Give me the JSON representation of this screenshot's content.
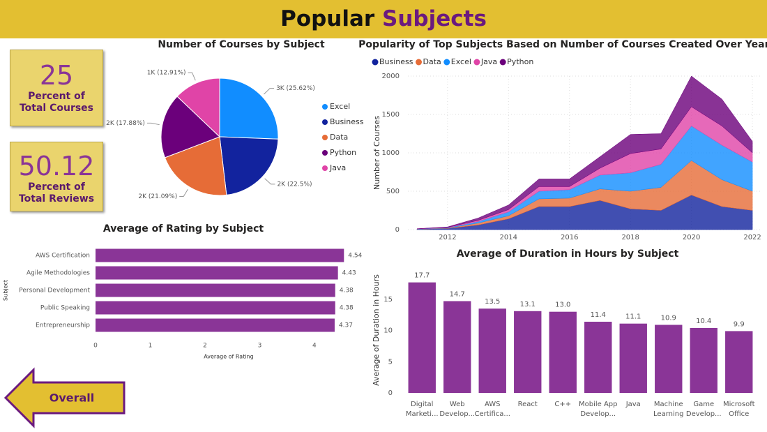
{
  "header": {
    "title": [
      "Popular",
      "Subjects"
    ]
  },
  "cards": [
    {
      "value": 25,
      "label": "Percent of Total Courses"
    },
    {
      "value": 50.12,
      "label": "Percent of Total Reviews"
    }
  ],
  "button": {
    "label": "Overall"
  },
  "chart_data": [
    {
      "type": "pie",
      "title": "Number of Courses by Subject",
      "categories": [
        "Excel",
        "Business",
        "Data",
        "Python",
        "Java"
      ],
      "values": [
        25.62,
        22.5,
        21.09,
        17.88,
        12.91
      ],
      "value_labels": [
        "3K (25.62%)",
        "2K (22.5%)",
        "2K (21.09%)",
        "2K (17.88%)",
        "1K (12.91%)"
      ],
      "colors": [
        "#118DFF",
        "#12239E",
        "#E66C37",
        "#6B007B",
        "#E044A7"
      ],
      "legend": "right"
    },
    {
      "type": "hbar",
      "title": "Average of Rating by Subject",
      "x_label": "Average of Rating",
      "y_label": "Subject",
      "categories": [
        "AWS Certification",
        "Agile Methodologies",
        "Personal Development",
        "Public Speaking",
        "Entrepreneurship"
      ],
      "values": [
        4.54,
        4.43,
        4.38,
        4.38,
        4.37
      ],
      "color": "#8A3597",
      "xlim": [
        0,
        4.6
      ],
      "xticks": [
        0,
        1,
        2,
        3,
        4
      ],
      "grid": false
    },
    {
      "type": "area",
      "title": "Popularity of Top Subjects Based on Number of Courses Created Over Years",
      "y_label": "Number of Courses",
      "x": [
        2011,
        2012,
        2013,
        2014,
        2015,
        2016,
        2017,
        2018,
        2019,
        2020,
        2021,
        2022
      ],
      "series": [
        {
          "name": "Business",
          "color": "#12239E",
          "values": [
            5,
            15,
            60,
            140,
            300,
            300,
            380,
            270,
            250,
            450,
            300,
            250
          ]
        },
        {
          "name": "Data",
          "color": "#E66C37",
          "values": [
            2,
            5,
            25,
            40,
            100,
            110,
            150,
            230,
            300,
            450,
            350,
            250
          ]
        },
        {
          "name": "Excel",
          "color": "#118DFF",
          "values": [
            2,
            5,
            20,
            50,
            100,
            110,
            180,
            240,
            300,
            450,
            450,
            380
          ]
        },
        {
          "name": "Java",
          "color": "#E044A7",
          "values": [
            1,
            5,
            15,
            30,
            60,
            40,
            90,
            250,
            200,
            250,
            250,
            120
          ]
        },
        {
          "name": "Python",
          "color": "#6B007B",
          "values": [
            2,
            5,
            30,
            60,
            100,
            100,
            150,
            250,
            200,
            400,
            350,
            150
          ]
        }
      ],
      "xlim": [
        2010.7,
        2022.25
      ],
      "ylim": [
        0,
        2000
      ],
      "xticks": [
        2012,
        2014,
        2016,
        2018,
        2020,
        2022
      ],
      "yticks": [
        0,
        500,
        1000,
        1500,
        2000
      ],
      "grid": true,
      "legend": "top"
    },
    {
      "type": "bar",
      "title": "Average of Duration in Hours by Subject",
      "y_label": "Average of Duration in Hours",
      "categories": [
        "Digital Marketi...",
        "Web Develop...",
        "AWS Certifica...",
        "React",
        "C++",
        "Mobile App Develop...",
        "Java",
        "Machine Learning",
        "Game Develop...",
        "Microsoft Office"
      ],
      "values": [
        17.7,
        14.7,
        13.5,
        13.1,
        13.0,
        11.4,
        11.1,
        10.9,
        10.4,
        9.9
      ],
      "value_labels": [
        "17.7",
        "14.7",
        "13.5",
        "13.1",
        "13.0",
        "11.4",
        "11.1",
        "10.9",
        "10.4",
        "9.9"
      ],
      "color": "#8A3597",
      "ylim": [
        0,
        19
      ],
      "yticks": [
        0,
        5,
        10,
        15
      ],
      "grid": false
    }
  ]
}
